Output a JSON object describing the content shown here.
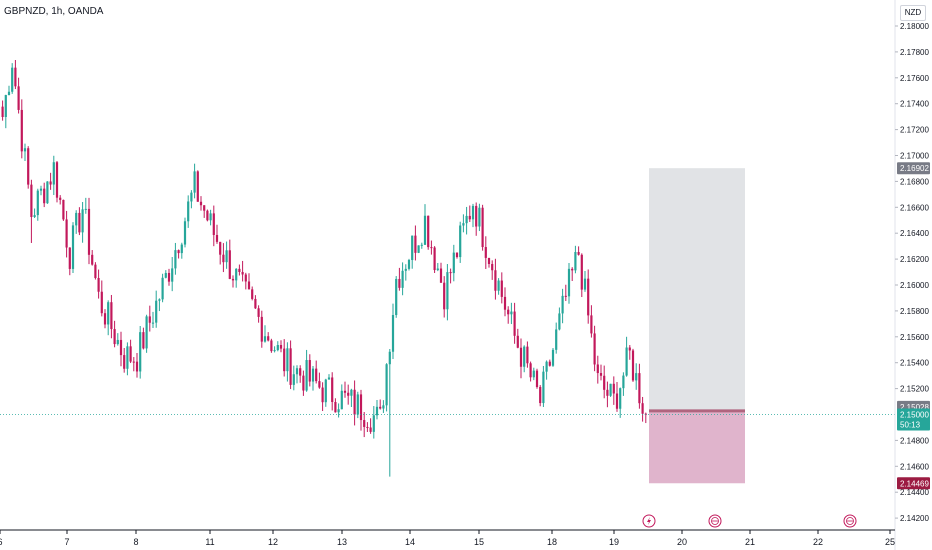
{
  "header": {
    "title": "GBPNZD, 1h, OANDA",
    "currency_button": "NZD"
  },
  "colors": {
    "up": "#26a69a",
    "down": "#c2185b",
    "axis": "#131722",
    "stop_zone": "#e1e3e6",
    "target_zone": "#e0b4cc",
    "current_price_tag": "#26a69a",
    "stop_tag": "#787b86",
    "target_tag": "#9c1b42"
  },
  "chart_data": {
    "type": "candlestick",
    "symbol": "GBPNZD",
    "timeframe": "1h",
    "source": "OANDA",
    "y_axis": {
      "ticks": [
        "2.18000",
        "2.17800",
        "2.17600",
        "2.17400",
        "2.17200",
        "2.17000",
        "2.16800",
        "2.16600",
        "2.16400",
        "2.16200",
        "2.16000",
        "2.15800",
        "2.15600",
        "2.15400",
        "2.15200",
        "2.14800",
        "2.14600",
        "2.14400",
        "2.14200"
      ],
      "range": [
        2.1415,
        2.181
      ]
    },
    "x_axis": {
      "ticks": [
        "6",
        "7",
        "8",
        "11",
        "12",
        "13",
        "14",
        "15",
        "18",
        "19",
        "20",
        "21",
        "22",
        "25"
      ]
    },
    "price_tags": [
      {
        "label": "2.16902",
        "value": 2.16902,
        "role": "stop"
      },
      {
        "label": "2.15028",
        "value": 2.15028,
        "role": "entry"
      },
      {
        "label": "2.15000",
        "sub": "50:13",
        "value": 2.15,
        "role": "current"
      },
      {
        "label": "2.14469",
        "value": 2.14469,
        "role": "target"
      }
    ],
    "position_tool": {
      "entry": 2.15028,
      "stop": 2.16902,
      "target": 2.14469,
      "start_day": "19",
      "end_day": "21"
    },
    "event_markers": [
      {
        "icon": "lightning-icon",
        "day": "19"
      },
      {
        "icon": "globe-flag-icon",
        "day": "20"
      },
      {
        "icon": "globe-flag-icon",
        "day": "22"
      }
    ],
    "anchors": [
      {
        "i": 0,
        "p": 2.173
      },
      {
        "i": 3,
        "p": 2.1775
      },
      {
        "i": 9,
        "p": 2.1655
      },
      {
        "i": 16,
        "p": 2.169
      },
      {
        "i": 21,
        "p": 2.1625
      },
      {
        "i": 25,
        "p": 2.166
      },
      {
        "i": 30,
        "p": 2.159
      },
      {
        "i": 38,
        "p": 2.1545
      },
      {
        "i": 42,
        "p": 2.1545
      },
      {
        "i": 51,
        "p": 2.1605
      },
      {
        "i": 60,
        "p": 2.1675
      },
      {
        "i": 66,
        "p": 2.164
      },
      {
        "i": 75,
        "p": 2.1595
      },
      {
        "i": 88,
        "p": 2.154
      },
      {
        "i": 100,
        "p": 2.152
      },
      {
        "i": 112,
        "p": 2.1505
      },
      {
        "i": 118,
        "p": 2.1495
      },
      {
        "i": 123,
        "p": 2.1605
      },
      {
        "i": 132,
        "p": 2.165
      },
      {
        "i": 138,
        "p": 2.1595
      },
      {
        "i": 147,
        "p": 2.1665
      },
      {
        "i": 152,
        "p": 2.1625
      },
      {
        "i": 160,
        "p": 2.156
      },
      {
        "i": 168,
        "p": 2.151
      },
      {
        "i": 176,
        "p": 2.159
      },
      {
        "i": 180,
        "p": 2.1625
      },
      {
        "i": 186,
        "p": 2.1525
      },
      {
        "i": 191,
        "p": 2.151
      },
      {
        "i": 196,
        "p": 2.1545
      },
      {
        "i": 201,
        "p": 2.15
      }
    ],
    "candle_count": 202
  }
}
